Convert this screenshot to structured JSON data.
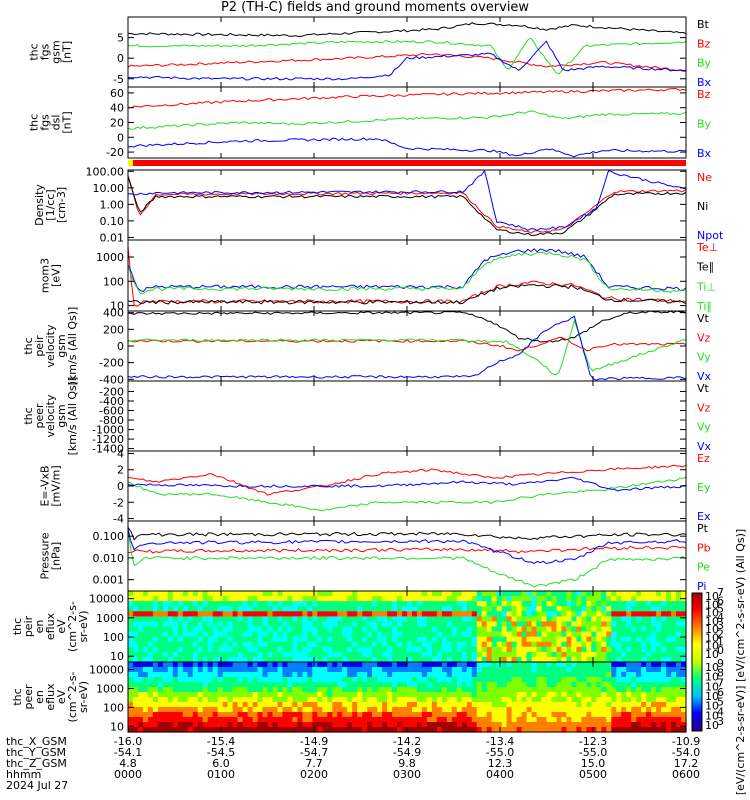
{
  "title": "P2 (TH-C) fields and ground moments overview",
  "colors": {
    "black": "#000000",
    "red": "#ff0000",
    "green": "#22dd22",
    "blue": "#0000ff"
  },
  "chart_data": [
    {
      "type": "line",
      "panel": "fgs_gsm",
      "ylabel": [
        "thc",
        "fgs",
        "gsm",
        "[nT]"
      ],
      "ylim": [
        -7,
        10
      ],
      "yticks": [
        "5",
        "0",
        "-5"
      ],
      "ytick_values": [
        5,
        0,
        -5
      ],
      "legend": [
        "Bt",
        "Bz",
        "By",
        "Bx"
      ],
      "series": [
        {
          "name": "Bt",
          "color": "#000000",
          "x": [
            0,
            0.3,
            0.55,
            0.6,
            0.62,
            0.7,
            0.75,
            0.8,
            0.9,
            1
          ],
          "values": [
            6,
            5.5,
            7,
            8,
            8.5,
            8,
            7,
            8,
            7,
            6
          ]
        },
        {
          "name": "Bz",
          "color": "#ff0000",
          "x": [
            0,
            0.2,
            0.4,
            0.55,
            0.65,
            0.75,
            0.85,
            1
          ],
          "values": [
            -2,
            -1,
            0,
            1,
            0,
            -2,
            -1,
            -3
          ]
        },
        {
          "name": "By",
          "color": "#22dd22",
          "x": [
            0,
            0.2,
            0.4,
            0.55,
            0.65,
            0.68,
            0.72,
            0.77,
            0.82,
            1
          ],
          "values": [
            3,
            3,
            4,
            4,
            3,
            -3,
            5,
            -4,
            3,
            4
          ]
        },
        {
          "name": "Bx",
          "color": "#0000ff",
          "x": [
            0,
            0.15,
            0.4,
            0.47,
            0.5,
            0.65,
            0.7,
            0.75,
            0.78,
            0.85,
            1
          ],
          "values": [
            -4.5,
            -5,
            -5,
            -4,
            0,
            1,
            -3,
            4,
            -3,
            -2,
            -3
          ]
        }
      ]
    },
    {
      "type": "line",
      "panel": "fgs_dsl",
      "ylabel": [
        "thc",
        "fgs",
        "dsl",
        "[nT]"
      ],
      "ylim": [
        -28,
        68
      ],
      "yticks": [
        "60",
        "40",
        "20",
        "0",
        "-20"
      ],
      "ytick_values": [
        60,
        40,
        20,
        0,
        -20
      ],
      "legend": [
        "Bz",
        "By",
        "Bx"
      ],
      "series": [
        {
          "name": "Bz",
          "color": "#ff0000",
          "x": [
            0,
            0.2,
            0.4,
            0.6,
            0.8,
            1
          ],
          "values": [
            41,
            49,
            55,
            59,
            62,
            65
          ]
        },
        {
          "name": "By",
          "color": "#22dd22",
          "x": [
            0,
            0.2,
            0.3,
            0.5,
            0.65,
            0.72,
            0.78,
            0.85,
            1
          ],
          "values": [
            12,
            20,
            18,
            25,
            27,
            35,
            25,
            31,
            32
          ]
        },
        {
          "name": "Bx",
          "color": "#0000ff",
          "x": [
            0,
            0.2,
            0.35,
            0.45,
            0.5,
            0.65,
            0.7,
            0.75,
            0.8,
            0.85,
            1
          ],
          "values": [
            -12,
            -5,
            -3,
            -2,
            -15,
            -18,
            -25,
            -15,
            -25,
            -18,
            -19
          ]
        }
      ]
    },
    {
      "type": "line",
      "panel": "density",
      "log": true,
      "ylabel": [
        "Density",
        "[1/cc]",
        "[cm-3]"
      ],
      "ylim": [
        0.007,
        120
      ],
      "yticks": [
        "100.00",
        "10.00",
        "1.00",
        "0.10",
        "0.01"
      ],
      "ytick_values": [
        100,
        10,
        1,
        0.1,
        0.01
      ],
      "legend": [
        "Ne",
        "Ni",
        "Npot"
      ],
      "series": [
        {
          "name": "Ne",
          "color": "#ff0000",
          "x": [
            0,
            0.02,
            0.05,
            0.6,
            0.66,
            0.72,
            0.78,
            0.83,
            0.87,
            1
          ],
          "values": [
            60,
            0.2,
            4,
            5,
            0.05,
            0.02,
            0.03,
            0.5,
            6,
            7
          ]
        },
        {
          "name": "Ni",
          "color": "#000000",
          "x": [
            0,
            0.02,
            0.05,
            0.6,
            0.66,
            0.72,
            0.78,
            0.83,
            0.87,
            1
          ],
          "values": [
            50,
            0.3,
            3,
            3,
            0.03,
            0.015,
            0.02,
            0.3,
            4,
            5
          ]
        },
        {
          "name": "Npot",
          "color": "#0000ff",
          "x": [
            0,
            0.05,
            0.6,
            0.64,
            0.66,
            0.72,
            0.78,
            0.84,
            0.86,
            1
          ],
          "values": [
            4,
            5,
            6,
            100,
            0.1,
            0.03,
            0.04,
            0.6,
            100,
            8
          ]
        }
      ]
    },
    {
      "type": "line",
      "panel": "temperature",
      "log": true,
      "ylabel": [
        "mom3",
        "[eV]"
      ],
      "ylim": [
        6,
        5000
      ],
      "yticks": [
        "1000",
        "100",
        "10"
      ],
      "ytick_values": [
        1000,
        100,
        10
      ],
      "legend": [
        "Te⊥",
        "Te∥",
        "Ti⊥",
        "Ti∥"
      ],
      "series": [
        {
          "name": "Te⊥",
          "color": "#ff0000",
          "x": [
            0,
            0.01,
            0.03,
            0.6,
            0.66,
            0.72,
            0.8,
            0.86,
            1
          ],
          "values": [
            3000,
            10,
            15,
            15,
            60,
            90,
            70,
            20,
            15
          ]
        },
        {
          "name": "Te∥",
          "color": "#000000",
          "x": [
            0,
            0.6,
            0.66,
            0.72,
            0.8,
            0.86,
            1
          ],
          "values": [
            14,
            14,
            50,
            70,
            60,
            18,
            14
          ]
        },
        {
          "name": "Ti⊥",
          "color": "#0000ff",
          "x": [
            0,
            0.02,
            0.05,
            0.6,
            0.64,
            0.7,
            0.76,
            0.82,
            0.86,
            1
          ],
          "values": [
            500,
            40,
            60,
            60,
            800,
            1800,
            2000,
            1000,
            60,
            50
          ]
        },
        {
          "name": "Ti∥",
          "color": "#22dd22",
          "x": [
            0,
            0.02,
            0.05,
            0.6,
            0.64,
            0.7,
            0.76,
            0.82,
            0.86,
            1
          ],
          "values": [
            400,
            35,
            50,
            50,
            600,
            1300,
            1500,
            800,
            50,
            40
          ]
        }
      ]
    },
    {
      "type": "line",
      "panel": "peir_velocity",
      "ylabel": [
        "thc",
        "peir",
        "velocity",
        "gsm",
        "[km/s (All Qs)]"
      ],
      "ylim": [
        -420,
        420
      ],
      "yticks": [
        "400",
        "200",
        "0",
        "-200",
        "-400"
      ],
      "ytick_values": [
        400,
        200,
        0,
        -200,
        -400
      ],
      "legend": [
        "Vt",
        "Vz",
        "Vy",
        "Vx"
      ],
      "series": [
        {
          "name": "Vt",
          "color": "#000000",
          "x": [
            0,
            0.6,
            0.65,
            0.7,
            0.75,
            0.8,
            0.85,
            0.9,
            1
          ],
          "values": [
            390,
            400,
            300,
            100,
            50,
            100,
            300,
            400,
            410
          ]
        },
        {
          "name": "Vz",
          "color": "#ff0000",
          "x": [
            0,
            0.6,
            0.67,
            0.7,
            0.75,
            0.78,
            0.82,
            0.86,
            1
          ],
          "values": [
            60,
            60,
            0,
            -60,
            50,
            100,
            -50,
            20,
            20
          ]
        },
        {
          "name": "Vy",
          "color": "#22dd22",
          "x": [
            0,
            0.6,
            0.68,
            0.74,
            0.77,
            0.8,
            0.83,
            1
          ],
          "values": [
            70,
            70,
            50,
            -200,
            -380,
            300,
            -300,
            80
          ]
        },
        {
          "name": "Vx",
          "color": "#0000ff",
          "x": [
            0,
            0.62,
            0.66,
            0.7,
            0.75,
            0.8,
            0.83,
            0.87,
            1
          ],
          "values": [
            -370,
            -370,
            -200,
            -100,
            200,
            350,
            -400,
            -390,
            -380
          ]
        }
      ]
    },
    {
      "type": "line",
      "panel": "peer_velocity",
      "ylabel": [
        "thc",
        "peer",
        "velocity",
        "gsm",
        "[km/s (All Qs)]"
      ],
      "ylim": [
        -1450,
        20
      ],
      "yticks": [
        "-200",
        "-400",
        "-600",
        "-800",
        "-1000",
        "-1200",
        "-1400"
      ],
      "ytick_values": [
        -200,
        -400,
        -600,
        -800,
        -1000,
        -1200,
        -1400
      ],
      "legend": [
        "Vt",
        "Vz",
        "Vy",
        "Vx"
      ],
      "series": []
    },
    {
      "type": "line",
      "panel": "efield",
      "ylabel": [
        "E=-VxB",
        "[mV/m]"
      ],
      "ylim": [
        -4.3,
        4.3
      ],
      "yticks": [
        "4",
        "2",
        "0",
        "-2",
        "-4"
      ],
      "ytick_values": [
        4,
        2,
        0,
        -2,
        -4
      ],
      "legend": [
        "Ez",
        "Ey",
        "Ex"
      ],
      "series": [
        {
          "name": "Ez",
          "color": "#ff0000",
          "x": [
            0,
            0.05,
            0.15,
            0.25,
            0.35,
            0.45,
            0.55,
            0.65,
            0.75,
            0.85,
            1
          ],
          "values": [
            1,
            0.5,
            1.5,
            -1,
            0,
            1.5,
            2,
            1,
            1.5,
            2,
            2.5
          ]
        },
        {
          "name": "Ey",
          "color": "#22dd22",
          "x": [
            0,
            0.05,
            0.15,
            0.25,
            0.35,
            0.45,
            0.55,
            0.65,
            0.75,
            0.85,
            1
          ],
          "values": [
            0.5,
            -1,
            -1,
            -2,
            -3,
            -2,
            -2,
            -2,
            -1,
            -0.5,
            1
          ]
        },
        {
          "name": "Ex",
          "color": "#0000ff",
          "x": [
            0,
            0.2,
            0.45,
            0.6,
            0.7,
            0.8,
            0.87,
            1
          ],
          "values": [
            0.2,
            0,
            0,
            0.5,
            0.2,
            1,
            -0.5,
            0
          ]
        }
      ]
    },
    {
      "type": "line",
      "panel": "pressure",
      "log": true,
      "ylabel": [
        "Pressure",
        "[nPa]"
      ],
      "ylim": [
        0.0003,
        0.5
      ],
      "yticks": [
        "0.100",
        "0.010",
        "0.001"
      ],
      "ytick_values": [
        0.1,
        0.01,
        0.001
      ],
      "legend": [
        "Pt",
        "Pb",
        "Pe",
        "Pi"
      ],
      "series": [
        {
          "name": "Pt",
          "color": "#000000",
          "x": [
            0,
            0.01,
            0.03,
            0.6,
            0.7,
            0.8,
            0.9,
            1
          ],
          "values": [
            0.3,
            0.08,
            0.12,
            0.13,
            0.08,
            0.1,
            0.12,
            0.12
          ]
        },
        {
          "name": "Pb",
          "color": "#ff0000",
          "x": [
            0,
            0.6,
            0.7,
            0.8,
            0.9,
            1
          ],
          "values": [
            0.02,
            0.025,
            0.02,
            0.025,
            0.03,
            0.03
          ]
        },
        {
          "name": "Pe",
          "color": "#22dd22",
          "x": [
            0,
            0.01,
            0.03,
            0.6,
            0.66,
            0.73,
            0.8,
            0.86,
            1
          ],
          "values": [
            0.2,
            0.004,
            0.01,
            0.01,
            0.002,
            0.0005,
            0.001,
            0.008,
            0.01
          ]
        },
        {
          "name": "Pi",
          "color": "#0000ff",
          "x": [
            0,
            0.01,
            0.03,
            0.6,
            0.66,
            0.73,
            0.8,
            0.86,
            1
          ],
          "values": [
            0.25,
            0.02,
            0.05,
            0.06,
            0.02,
            0.006,
            0.008,
            0.05,
            0.06
          ]
        }
      ]
    },
    {
      "type": "heatmap",
      "panel": "peir_eflux",
      "ylabel": [
        "thc",
        "peir",
        "en",
        "eflux",
        "eV",
        "(cm^2-s-",
        "sr-eV)"
      ],
      "ylim": [
        5,
        25000
      ],
      "yticks": [
        "10000",
        "1000",
        "100",
        "10"
      ],
      "ytick_values": [
        10000,
        1000,
        100,
        10
      ]
    },
    {
      "type": "heatmap",
      "panel": "peer_eflux",
      "ylabel": [
        "thc",
        "peer",
        "en",
        "eflux",
        "eV",
        "(cm^2-s-",
        "sr-eV)"
      ],
      "ylim": [
        5,
        25000
      ],
      "yticks": [
        "10000",
        "1000",
        "100",
        "10"
      ],
      "ytick_values": [
        10000,
        1000,
        100,
        10
      ]
    }
  ],
  "colorbar": {
    "unit": "[eV/(cm^2-s-sr-eV)] [eV/(cm^2-s-sr-eV) (All Qs)]",
    "upper_ticks": [
      "7",
      "6",
      "5",
      "4",
      "3",
      "2",
      "1",
      "0"
    ],
    "lower_ticks": [
      "9",
      "8",
      "7",
      "6",
      "5",
      "4",
      "3"
    ]
  },
  "xaxis": {
    "ticks": [
      "-16.0",
      "-15.4",
      "-14.9",
      "-14.2",
      "-13.4",
      "-12.3",
      "-10.9"
    ],
    "tick_x": [
      0,
      0.1667,
      0.3333,
      0.5,
      0.6667,
      0.8333,
      1
    ],
    "rows": [
      {
        "label": "thc_X_GSM",
        "values": [
          "-16.0",
          "-15.4",
          "-14.9",
          "-14.2",
          "-13.4",
          "-12.3",
          "-10.9"
        ]
      },
      {
        "label": "thc_Y_GSM",
        "values": [
          "-54.1",
          "-54.5",
          "-54.7",
          "-54.9",
          "-55.0",
          "-55.0",
          "-54.0"
        ]
      },
      {
        "label": "thc_Z_GSM",
        "values": [
          "4.8",
          "6.0",
          "7.7",
          "9.8",
          "12.3",
          "15.0",
          "17.2"
        ]
      },
      {
        "label": "hhmm",
        "values": [
          "0000",
          "0100",
          "0200",
          "0300",
          "0400",
          "0500",
          "0600"
        ]
      },
      {
        "label": "2024 Jul 27",
        "values": []
      }
    ]
  }
}
